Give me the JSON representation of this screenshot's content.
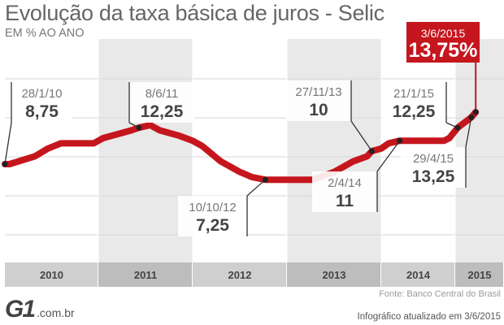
{
  "title": "Evolução da taxa básica de juros - Selic",
  "subtitle": "EM % AO ANO",
  "source": "Fonte: Banco Central do Brasil",
  "brand": {
    "logo": "G1",
    "domain": ".com.br"
  },
  "updated": "Infográfico atualizado em 3/6/2015",
  "colors": {
    "line": "#c5161d",
    "highlight": "#c5161d",
    "grid_shade": "#e9e9e9",
    "axis_band": "#c7c7c7"
  },
  "chart_data": {
    "type": "line",
    "title": "Evolução da taxa básica de juros - Selic",
    "ylabel": "EM % AO ANO",
    "x_unit": "year",
    "years": [
      "2010",
      "2011",
      "2012",
      "2013",
      "2014",
      "2015"
    ],
    "series": [
      {
        "values": [
          {
            "x": 2010.0,
            "y": 8.75
          },
          {
            "x": 2010.05,
            "y": 8.75
          },
          {
            "x": 2010.32,
            "y": 9.5
          },
          {
            "x": 2010.46,
            "y": 10.25
          },
          {
            "x": 2010.6,
            "y": 10.75
          },
          {
            "x": 2010.95,
            "y": 10.75
          },
          {
            "x": 2011.05,
            "y": 11.25
          },
          {
            "x": 2011.25,
            "y": 11.75
          },
          {
            "x": 2011.35,
            "y": 12.0
          },
          {
            "x": 2011.43,
            "y": 12.25
          },
          {
            "x": 2011.55,
            "y": 12.5
          },
          {
            "x": 2011.65,
            "y": 12.0
          },
          {
            "x": 2011.85,
            "y": 11.5
          },
          {
            "x": 2012.0,
            "y": 11.0
          },
          {
            "x": 2012.1,
            "y": 10.5
          },
          {
            "x": 2012.3,
            "y": 9.0
          },
          {
            "x": 2012.5,
            "y": 8.0
          },
          {
            "x": 2012.63,
            "y": 7.5
          },
          {
            "x": 2012.77,
            "y": 7.25
          },
          {
            "x": 2013.27,
            "y": 7.25
          },
          {
            "x": 2013.35,
            "y": 7.5
          },
          {
            "x": 2013.5,
            "y": 8.0
          },
          {
            "x": 2013.7,
            "y": 9.0
          },
          {
            "x": 2013.85,
            "y": 9.5
          },
          {
            "x": 2013.9,
            "y": 10.0
          },
          {
            "x": 2014.0,
            "y": 10.25
          },
          {
            "x": 2014.1,
            "y": 10.75
          },
          {
            "x": 2014.25,
            "y": 11.0
          },
          {
            "x": 2014.85,
            "y": 11.0
          },
          {
            "x": 2014.92,
            "y": 11.25
          },
          {
            "x": 2015.05,
            "y": 12.25
          },
          {
            "x": 2015.33,
            "y": 13.25
          },
          {
            "x": 2015.42,
            "y": 13.75
          }
        ]
      }
    ],
    "annotations": [
      {
        "date": "28/1/10",
        "value": "8,75",
        "x": 2010.0,
        "y": 8.75,
        "highlight": false
      },
      {
        "date": "8/6/11",
        "value": "12,25",
        "x": 2011.43,
        "y": 12.25,
        "highlight": false
      },
      {
        "date": "10/10/12",
        "value": "7,25",
        "x": 2012.77,
        "y": 7.25,
        "highlight": false
      },
      {
        "date": "27/11/13",
        "value": "10",
        "x": 2013.9,
        "y": 10.0,
        "highlight": false
      },
      {
        "date": "2/4/14",
        "value": "11",
        "x": 2014.25,
        "y": 11.0,
        "highlight": false
      },
      {
        "date": "21/1/15",
        "value": "12,25",
        "x": 2015.05,
        "y": 12.25,
        "highlight": false
      },
      {
        "date": "29/4/15",
        "value": "13,25",
        "x": 2015.33,
        "y": 13.25,
        "highlight": false
      },
      {
        "date": "3/6/2015",
        "value": "13,75%",
        "x": 2015.42,
        "y": 13.75,
        "highlight": true
      }
    ],
    "grid": true
  }
}
